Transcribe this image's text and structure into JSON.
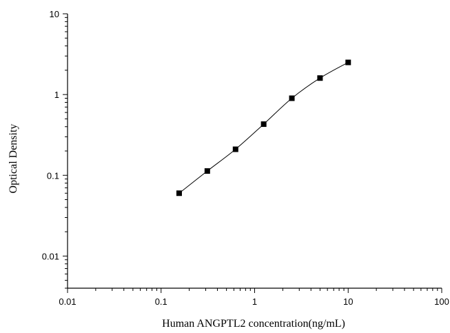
{
  "chart_data": {
    "type": "scatter",
    "title": "",
    "xlabel": "Human ANGPTL2 concentration(ng/mL)",
    "ylabel": "Optical Density",
    "x_scale": "log",
    "y_scale": "log",
    "xlim": [
      0.01,
      100
    ],
    "ylim": [
      0.004,
      10
    ],
    "x_ticks": [
      0.01,
      0.1,
      1,
      10,
      100
    ],
    "x_tick_labels": [
      "0.01",
      "0.1",
      "1",
      "10",
      "100"
    ],
    "y_ticks": [
      0.01,
      0.1,
      1,
      10
    ],
    "y_tick_labels": [
      "0.01",
      "0.1",
      "1",
      "10"
    ],
    "grid": false,
    "legend": "none",
    "series": [
      {
        "marker": "square",
        "color": "#000000",
        "x": [
          0.156,
          0.312,
          0.625,
          1.25,
          2.5,
          5,
          10
        ],
        "y": [
          0.06,
          0.113,
          0.21,
          0.43,
          0.9,
          1.6,
          2.5
        ]
      }
    ],
    "fit_curve": {
      "type": "smooth",
      "color": "#000000"
    }
  }
}
